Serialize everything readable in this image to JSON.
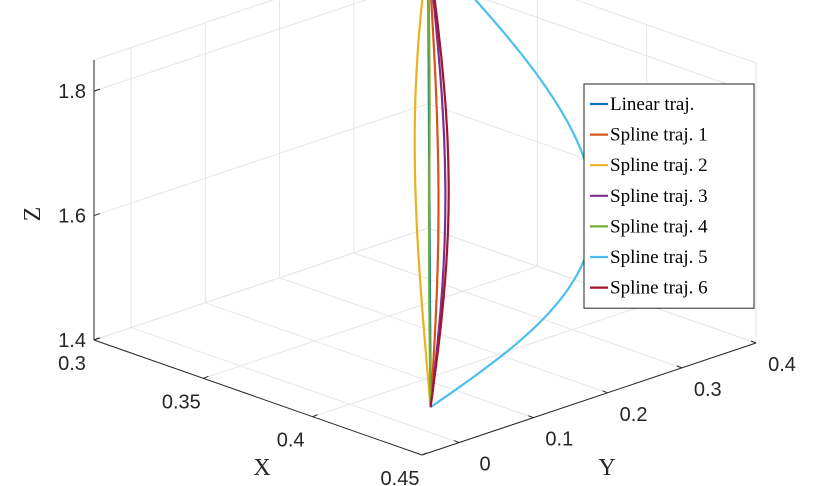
{
  "chart_data": {
    "type": "line",
    "projection": "3d",
    "grid": true,
    "legend_position": "right",
    "xlabel": "X",
    "ylabel": "Y",
    "zlabel": "Z",
    "xlim": [
      0.3,
      0.45
    ],
    "ylim": [
      -0.05,
      0.4
    ],
    "zlim": [
      1.4,
      1.85
    ],
    "x_ticks": [
      "0.3",
      "0.35",
      "0.4",
      "0.45"
    ],
    "y_ticks": [
      "0",
      "0.1",
      "0.2",
      "0.3",
      "0.4"
    ],
    "z_ticks": [
      "1.4",
      "1.6",
      "1.8"
    ],
    "start_point": {
      "x": 0.42,
      "y": 0.05,
      "z": 1.4
    },
    "end_point": {
      "x": 0.3,
      "y": 0.4,
      "z": 1.85
    },
    "series": [
      {
        "name": "Linear traj.",
        "color": "#0072BD",
        "bulge": [
          0,
          0,
          0
        ]
      },
      {
        "name": "Spline traj. 1",
        "color": "#D95319",
        "bulge": [
          -0.006,
          0.03,
          -0.04
        ]
      },
      {
        "name": "Spline traj. 2",
        "color": "#EDB120",
        "bulge": [
          0.012,
          -0.055,
          0.08
        ]
      },
      {
        "name": "Spline traj. 3",
        "color": "#7E2F8E",
        "bulge": [
          -0.03,
          0.11,
          -0.1
        ]
      },
      {
        "name": "Spline traj. 4",
        "color": "#77AC30",
        "bulge": [
          0.02,
          -0.06,
          0.06
        ],
        "s_shape": true
      },
      {
        "name": "Spline traj. 5",
        "color": "#4DBEEE",
        "bulge": [
          0.15,
          -0.22,
          0.22
        ]
      },
      {
        "name": "Spline traj. 6",
        "color": "#A2142F",
        "bulge": [
          -0.02,
          0.085,
          -0.07
        ]
      }
    ]
  }
}
